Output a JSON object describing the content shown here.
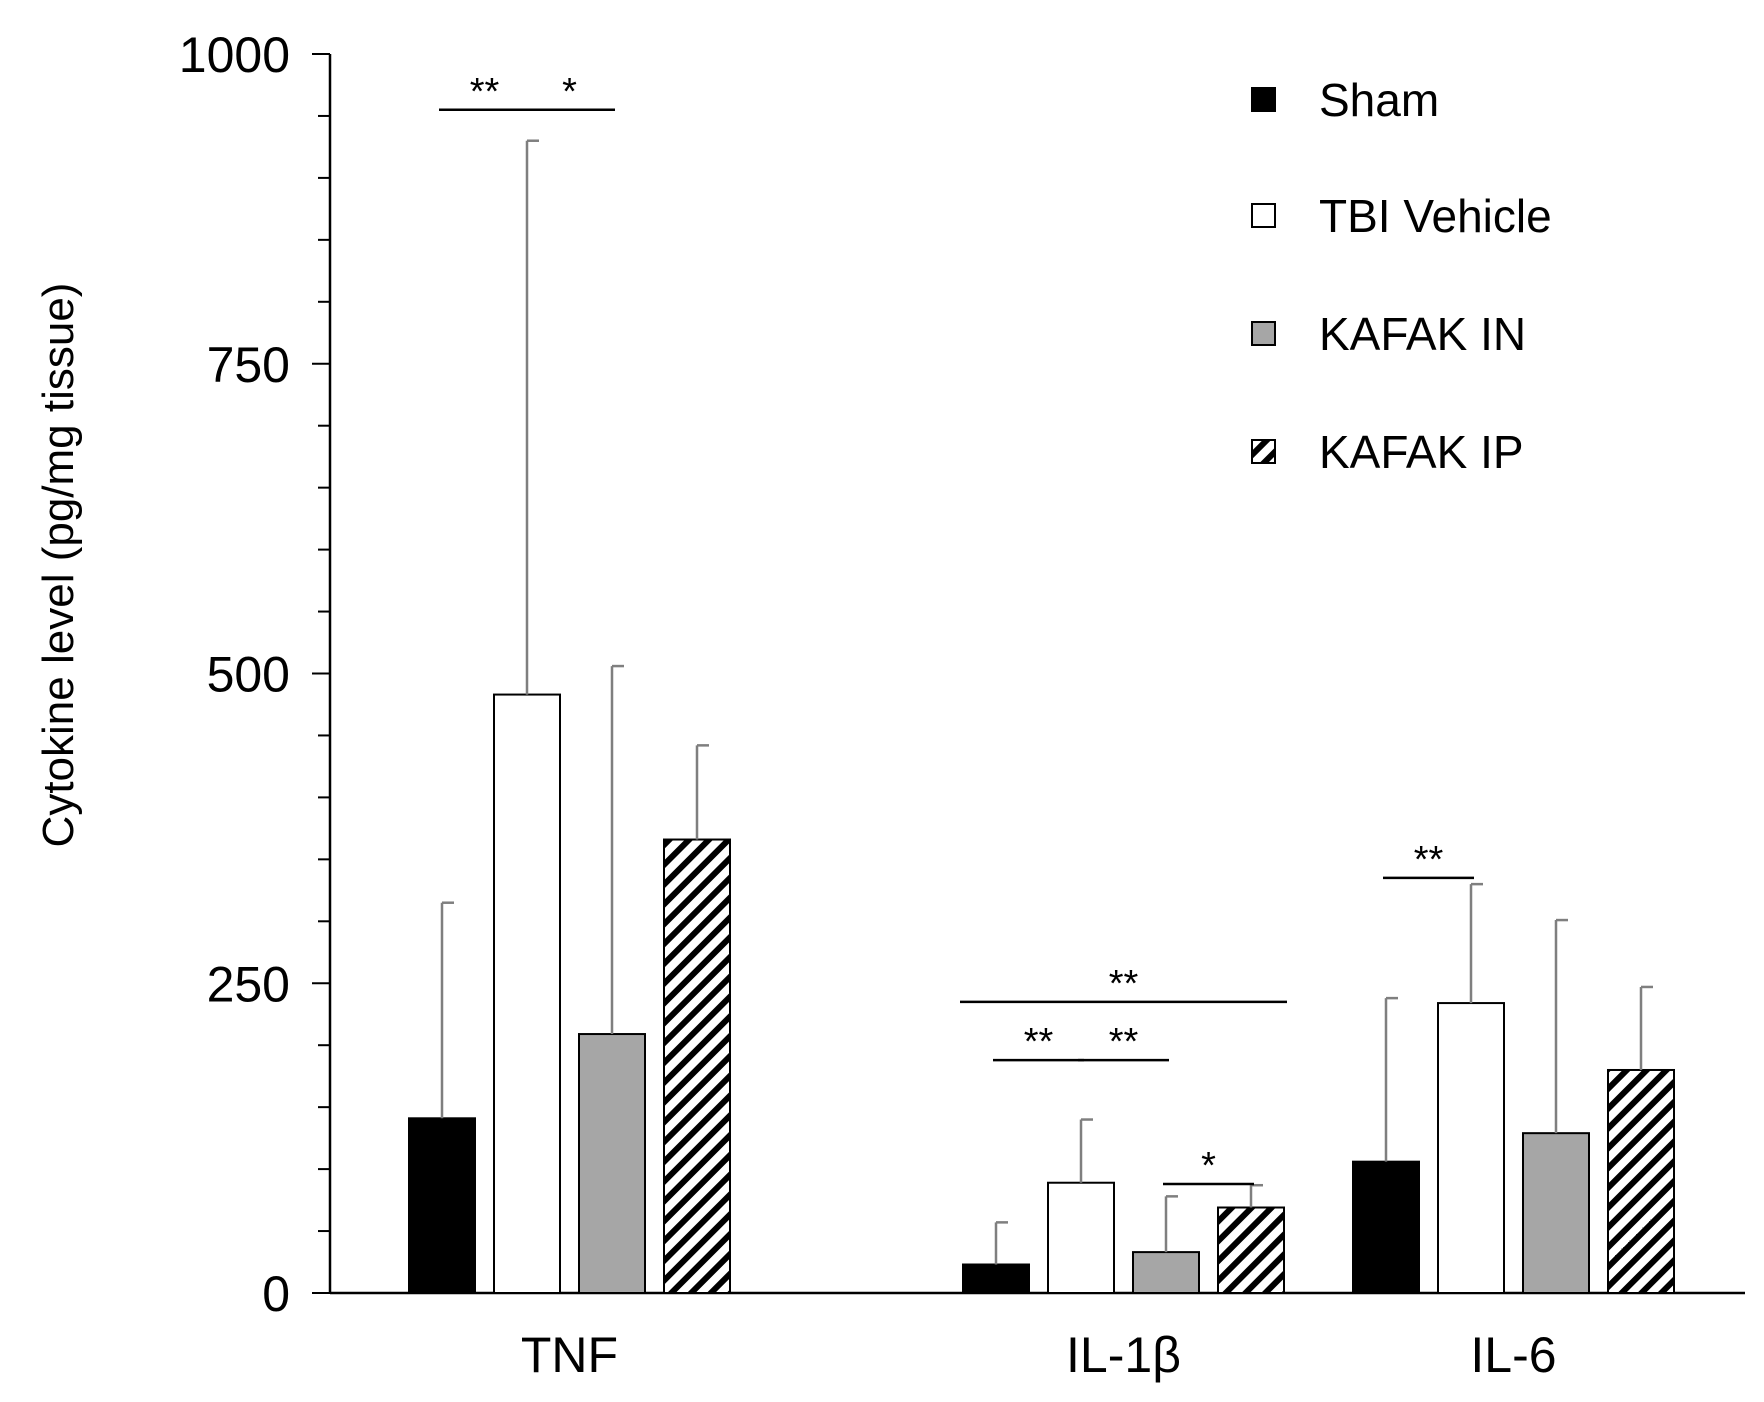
{
  "chart_data": {
    "type": "bar",
    "title": "",
    "xlabel": "",
    "ylabel": "Cytokine level (pg/mg tissue)",
    "ylim": [
      0,
      1000
    ],
    "yticks": [
      0,
      250,
      500,
      750,
      1000
    ],
    "ytick_labels": [
      "0",
      "250",
      "500",
      "750",
      "1000"
    ],
    "minor_tick_step": 50,
    "grid": false,
    "legend_position": "top-right",
    "categories": [
      "TNF",
      "IL-1β",
      "IL-6"
    ],
    "series": [
      {
        "name": "Sham",
        "pattern": "solid-black",
        "values": [
          141,
          23,
          106
        ],
        "errors": [
          174,
          34,
          132
        ]
      },
      {
        "name": "TBI Vehicle",
        "pattern": "white",
        "values": [
          483,
          89,
          234
        ],
        "errors": [
          447,
          51,
          96
        ]
      },
      {
        "name": "KAFAK IN",
        "pattern": "gray",
        "values": [
          209,
          33,
          129
        ],
        "errors": [
          297,
          45,
          172
        ]
      },
      {
        "name": "KAFAK IP",
        "pattern": "diagonal-hatch",
        "values": [
          366,
          69,
          180
        ],
        "errors": [
          76,
          18,
          67
        ]
      }
    ],
    "significance": [
      {
        "category": 0,
        "from": 0,
        "to": 1,
        "label": "**",
        "y": 955
      },
      {
        "category": 0,
        "from": 1,
        "to": 2,
        "label": "*",
        "y": 955
      },
      {
        "category": 1,
        "from": 0,
        "to": 3,
        "label": "**",
        "y": 235
      },
      {
        "category": 1,
        "from": 0,
        "to": 1,
        "label": "**",
        "y": 188
      },
      {
        "category": 1,
        "from": 1,
        "to": 2,
        "label": "**",
        "y": 188
      },
      {
        "category": 1,
        "from": 2,
        "to": 3,
        "label": "*",
        "y": 88
      },
      {
        "category": 2,
        "from": 0,
        "to": 1,
        "label": "**",
        "y": 335
      }
    ],
    "colors": {
      "sham": "#000000",
      "tbi_vehicle": "#ffffff",
      "kafak_in": "#a6a6a6",
      "kafak_ip_stripe": "#000000",
      "error_bar": "#7f7f7f"
    }
  }
}
